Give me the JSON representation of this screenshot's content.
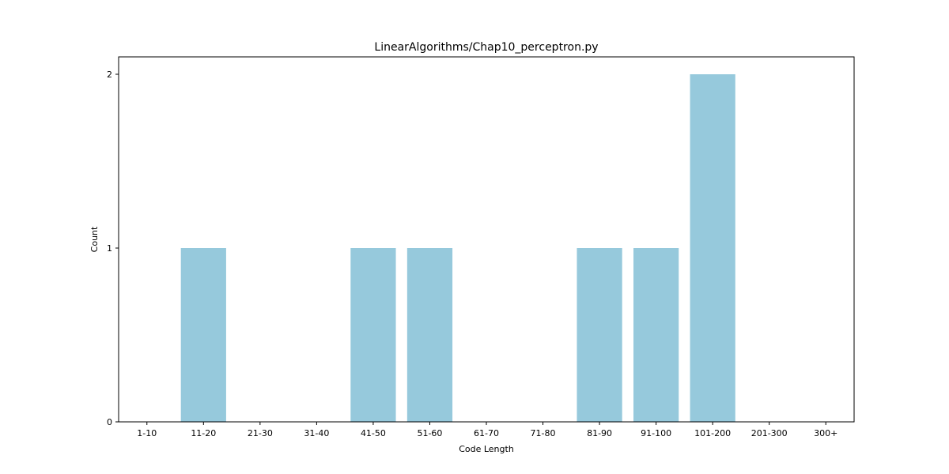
{
  "chart_data": {
    "type": "bar",
    "title": "LinearAlgorithms/Chap10_perceptron.py",
    "xlabel": "Code Length",
    "ylabel": "Count",
    "categories": [
      "1-10",
      "11-20",
      "21-30",
      "31-40",
      "41-50",
      "51-60",
      "61-70",
      "71-80",
      "81-90",
      "91-100",
      "101-200",
      "201-300",
      "300+"
    ],
    "values": [
      0,
      1,
      0,
      0,
      1,
      1,
      0,
      0,
      1,
      1,
      2,
      0,
      0
    ],
    "ylim": [
      0,
      2.1
    ],
    "yticks": [
      0,
      1,
      2
    ],
    "bar_color": "#96c9dc",
    "grid": false,
    "legend": "none"
  }
}
